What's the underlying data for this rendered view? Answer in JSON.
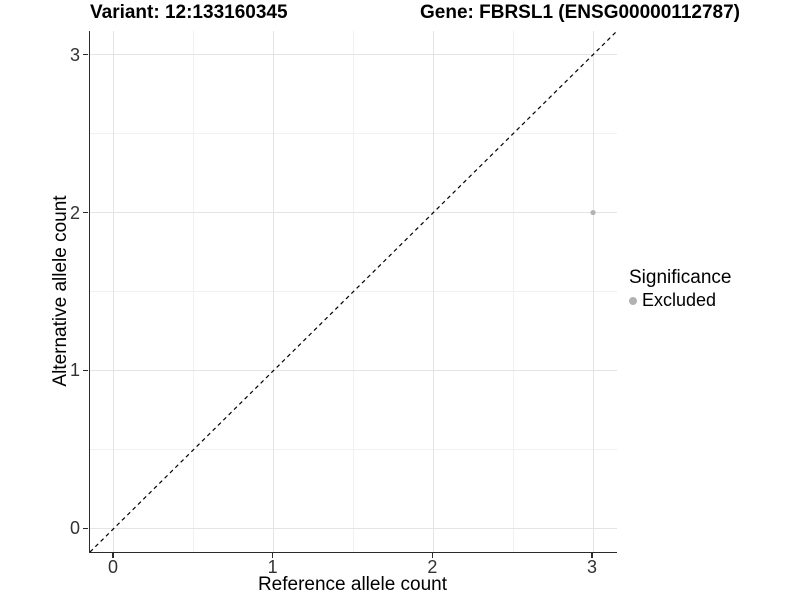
{
  "chart_data": {
    "type": "scatter",
    "title_left": "Variant: 12:133160345",
    "title_right": "Gene: FBRSL1 (ENSG00000112787)",
    "xlabel": "Reference allele count",
    "ylabel": "Alternative allele count",
    "xlim": [
      -0.15,
      3.15
    ],
    "ylim": [
      -0.15,
      3.15
    ],
    "x_ticks": [
      0,
      1,
      2,
      3
    ],
    "y_ticks": [
      0,
      1,
      2,
      3
    ],
    "x_minor_ticks": [
      0.5,
      1.5,
      2.5
    ],
    "y_minor_ticks": [
      0.5,
      1.5,
      2.5
    ],
    "grid": "major+minor",
    "series": [
      {
        "name": "Excluded",
        "color": "#b2b2b2",
        "points": [
          {
            "x": 3,
            "y": 2
          }
        ]
      }
    ],
    "abline": {
      "slope": 1,
      "intercept": 0,
      "linetype": "dashed",
      "color": "#000000"
    },
    "legend": {
      "title": "Significance",
      "position": "right",
      "entries": [
        {
          "label": "Excluded",
          "color": "#b2b2b2"
        }
      ]
    },
    "colors": {
      "grid_major": "#e4e4e4",
      "grid_minor": "#f1f1f1",
      "axis_line": "#2b2b2b",
      "tick_label": "#333333",
      "background": "#ffffff"
    }
  }
}
